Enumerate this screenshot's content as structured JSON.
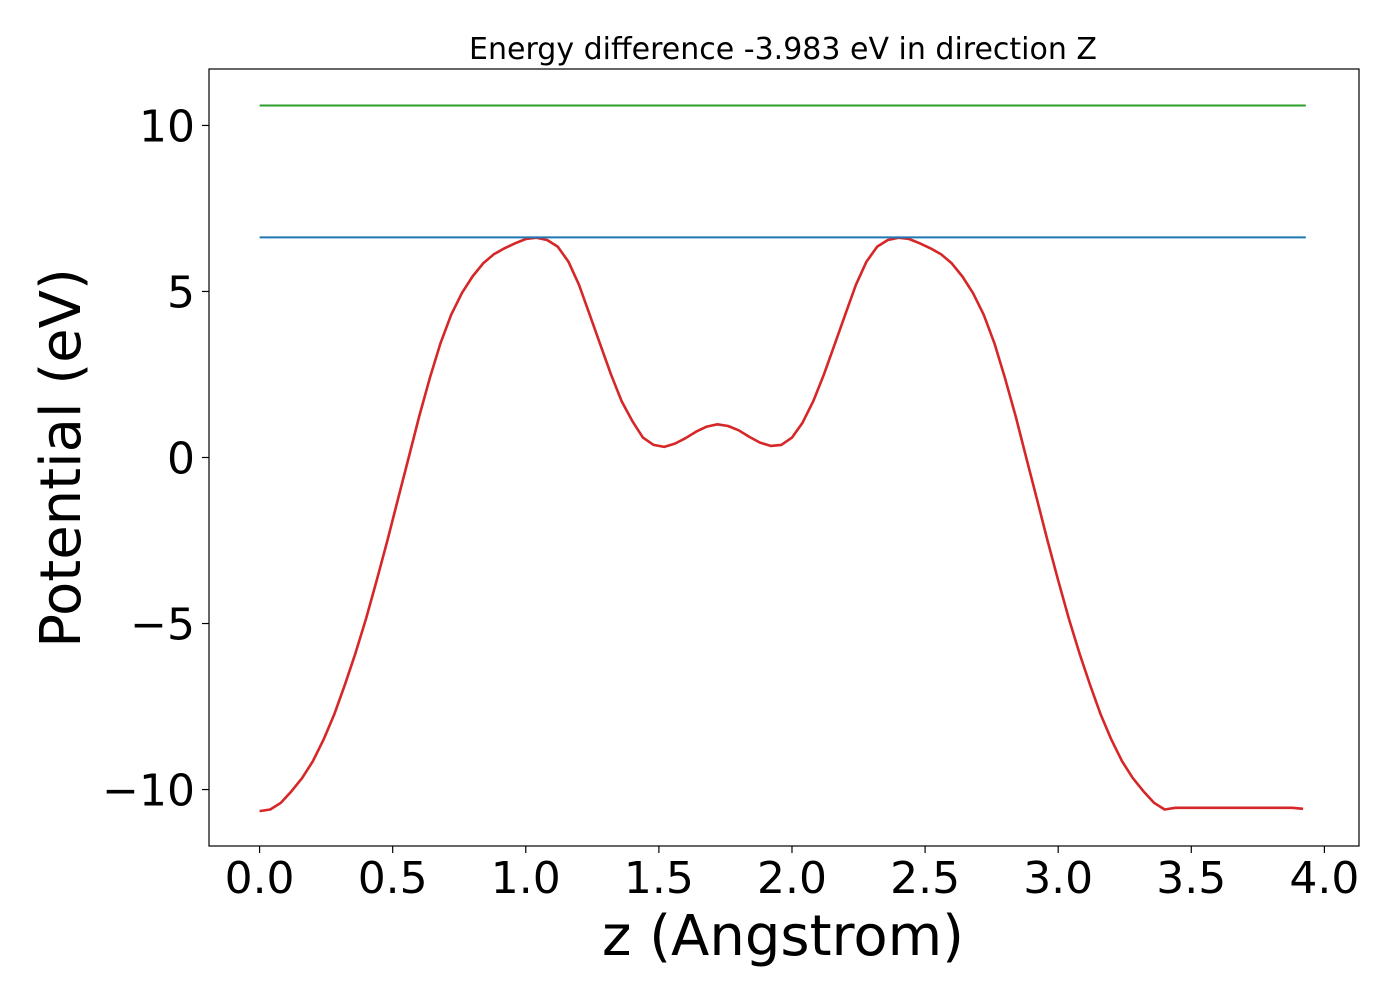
{
  "chart_data": {
    "type": "line",
    "title": "Energy difference -3.983 eV in direction Z",
    "xlabel": "z (Angstrom)",
    "ylabel": "Potential (eV)",
    "xlim": [
      -0.19,
      4.13
    ],
    "ylim": [
      -11.7,
      11.7
    ],
    "xticks": [
      0.0,
      0.5,
      1.0,
      1.5,
      2.0,
      2.5,
      3.0,
      3.5,
      4.0
    ],
    "xtick_labels": [
      "0.0",
      "0.5",
      "1.0",
      "1.5",
      "2.0",
      "2.5",
      "3.0",
      "3.5",
      "4.0"
    ],
    "yticks": [
      -10,
      -5,
      0,
      5,
      10
    ],
    "ytick_labels": [
      "−10",
      "−5",
      "0",
      "5",
      "10"
    ],
    "grid": false,
    "series": [
      {
        "color": "#d62728",
        "x": [
          0.0,
          0.04,
          0.08,
          0.12,
          0.16,
          0.2,
          0.24,
          0.28,
          0.32,
          0.36,
          0.4,
          0.44,
          0.48,
          0.52,
          0.56,
          0.6,
          0.64,
          0.68,
          0.72,
          0.76,
          0.8,
          0.84,
          0.88,
          0.92,
          0.96,
          1.0,
          1.04,
          1.08,
          1.12,
          1.16,
          1.2,
          1.24,
          1.28,
          1.32,
          1.36,
          1.4,
          1.44,
          1.48,
          1.52,
          1.56,
          1.6,
          1.64,
          1.68,
          1.72,
          1.76,
          1.8,
          1.84,
          1.88,
          1.92,
          1.96,
          2.0,
          2.04,
          2.08,
          2.12,
          2.16,
          2.2,
          2.24,
          2.28,
          2.32,
          2.36,
          2.4,
          2.44,
          2.48,
          2.52,
          2.56,
          2.6,
          2.64,
          2.68,
          2.72,
          2.76,
          2.8,
          2.84,
          2.88,
          2.92,
          2.96,
          3.0,
          3.04,
          3.08,
          3.12,
          3.16,
          3.2,
          3.24,
          3.28,
          3.32,
          3.36,
          3.4,
          3.44,
          3.48,
          3.52,
          3.56,
          3.6,
          3.64,
          3.68,
          3.72,
          3.76,
          3.8,
          3.84,
          3.88,
          3.92
        ],
        "y": [
          -10.65,
          -10.6,
          -10.4,
          -10.05,
          -9.65,
          -9.15,
          -8.5,
          -7.75,
          -6.85,
          -5.9,
          -4.85,
          -3.7,
          -2.5,
          -1.25,
          0.0,
          1.25,
          2.4,
          3.45,
          4.3,
          4.95,
          5.45,
          5.85,
          6.12,
          6.3,
          6.45,
          6.58,
          6.62,
          6.55,
          6.35,
          5.9,
          5.2,
          4.3,
          3.4,
          2.5,
          1.7,
          1.1,
          0.6,
          0.38,
          0.32,
          0.42,
          0.58,
          0.78,
          0.93,
          1.0,
          0.95,
          0.82,
          0.62,
          0.45,
          0.35,
          0.38,
          0.6,
          1.05,
          1.7,
          2.5,
          3.4,
          4.3,
          5.2,
          5.9,
          6.35,
          6.55,
          6.62,
          6.58,
          6.45,
          6.3,
          6.12,
          5.85,
          5.45,
          4.95,
          4.3,
          3.45,
          2.4,
          1.25,
          0.0,
          -1.25,
          -2.5,
          -3.7,
          -4.85,
          -5.9,
          -6.85,
          -7.75,
          -8.5,
          -9.15,
          -9.65,
          -10.05,
          -10.4,
          -10.6,
          -10.55,
          -10.55,
          -10.55,
          -10.55,
          -10.55,
          -10.55,
          -10.55,
          -10.55,
          -10.55,
          -10.55,
          -10.55,
          -10.55,
          -10.58
        ]
      },
      {
        "color": "#1f77b4",
        "x": [
          0.0,
          3.93
        ],
        "y": [
          6.63,
          6.63
        ]
      },
      {
        "color": "#2ca02c",
        "x": [
          0.0,
          3.93
        ],
        "y": [
          10.6,
          10.6
        ]
      }
    ]
  }
}
